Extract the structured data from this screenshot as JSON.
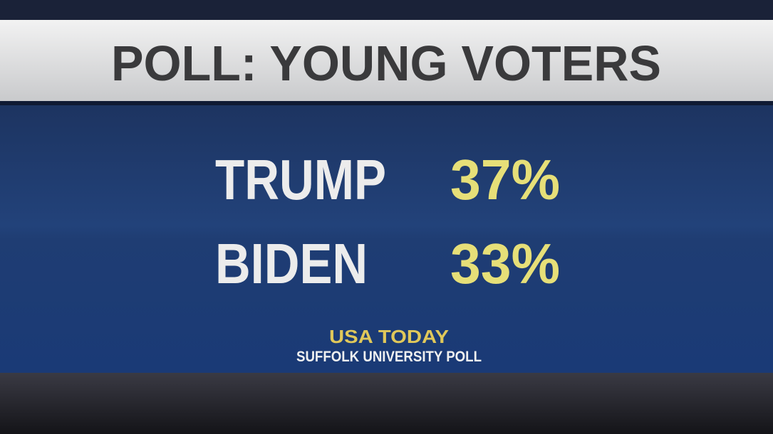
{
  "header": {
    "title": "POLL: YOUNG VOTERS"
  },
  "rows": [
    {
      "name": "TRUMP",
      "value": "37%"
    },
    {
      "name": "BIDEN",
      "value": "33%"
    }
  ],
  "source": {
    "outlet": "USA TODAY",
    "poll": "SUFFOLK UNIVERSITY POLL"
  }
}
